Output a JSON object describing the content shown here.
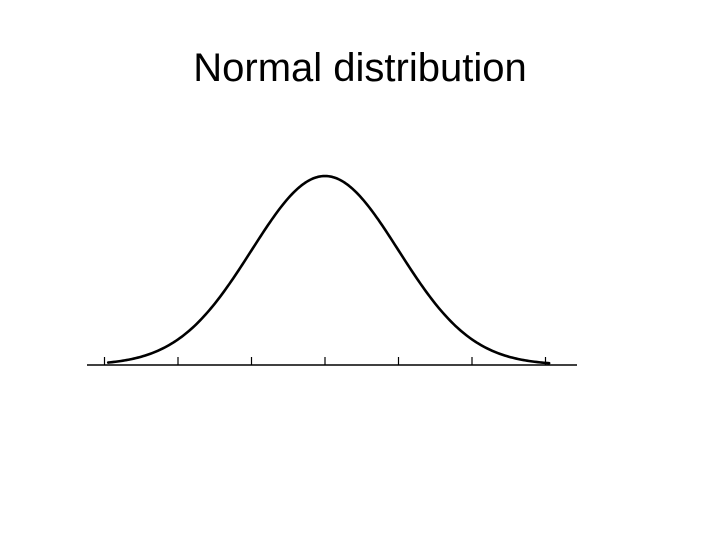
{
  "slide": {
    "title": "Normal distribution"
  },
  "chart_data": {
    "type": "line",
    "title": "",
    "xlabel": "",
    "ylabel": "",
    "curve": "normal-density",
    "mean": 0,
    "std": 1,
    "xlim": [
      -3.2,
      3.4
    ],
    "tick_values": [
      -3,
      -2,
      -1,
      0,
      1,
      2,
      3
    ],
    "tick_labels_shown": false,
    "grid": false,
    "colors": {
      "curve": "#000000",
      "axis": "#000000"
    }
  }
}
